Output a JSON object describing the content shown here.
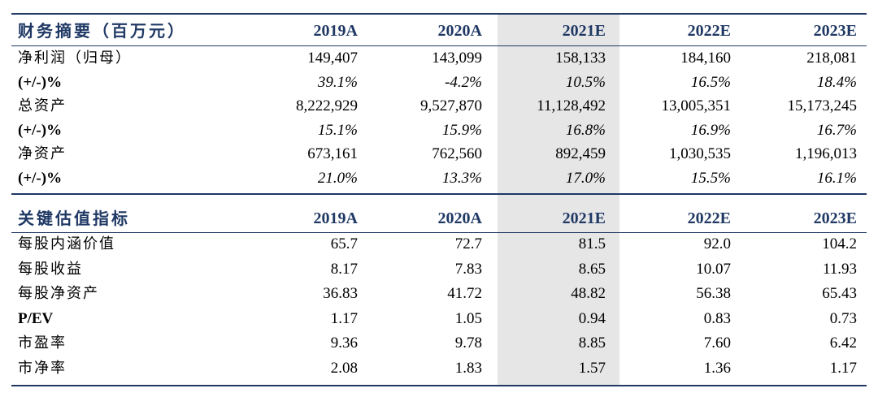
{
  "section1": {
    "header": {
      "label": "财务摘要（百万元）",
      "years": [
        "2019A",
        "2020A",
        "2021E",
        "2022E",
        "2023E"
      ]
    },
    "rows": [
      {
        "label": "净利润（归母）",
        "values": [
          "149,407",
          "143,099",
          "158,133",
          "184,160",
          "218,081"
        ],
        "italic": false
      },
      {
        "label": "(+/-)%",
        "values": [
          "39.1%",
          "-4.2%",
          "10.5%",
          "16.5%",
          "18.4%"
        ],
        "italic": true
      },
      {
        "label": "总资产",
        "values": [
          "8,222,929",
          "9,527,870",
          "11,128,492",
          "13,005,351",
          "15,173,245"
        ],
        "italic": false
      },
      {
        "label": "(+/-)%",
        "values": [
          "15.1%",
          "15.9%",
          "16.8%",
          "16.9%",
          "16.7%"
        ],
        "italic": true
      },
      {
        "label": "净资产",
        "values": [
          "673,161",
          "762,560",
          "892,459",
          "1,030,535",
          "1,196,013"
        ],
        "italic": false
      },
      {
        "label": "(+/-)%",
        "values": [
          "21.0%",
          "13.3%",
          "17.0%",
          "15.5%",
          "16.1%"
        ],
        "italic": true
      }
    ]
  },
  "section2": {
    "header": {
      "label": "关键估值指标",
      "years": [
        "2019A",
        "2020A",
        "2021E",
        "2022E",
        "2023E"
      ]
    },
    "rows": [
      {
        "label": "每股内涵价值",
        "values": [
          "65.7",
          "72.7",
          "81.5",
          "92.0",
          "104.2"
        ],
        "italic": false
      },
      {
        "label": "每股收益",
        "values": [
          "8.17",
          "7.83",
          "8.65",
          "10.07",
          "11.93"
        ],
        "italic": false
      },
      {
        "label": "每股净资产",
        "values": [
          "36.83",
          "41.72",
          "48.82",
          "56.38",
          "65.43"
        ],
        "italic": false
      },
      {
        "label": "P/EV",
        "values": [
          "1.17",
          "1.05",
          "0.94",
          "0.83",
          "0.73"
        ],
        "italic": false
      },
      {
        "label": "市盈率",
        "values": [
          "9.36",
          "9.78",
          "8.85",
          "7.60",
          "6.42"
        ],
        "italic": false
      },
      {
        "label": "市净率",
        "values": [
          "2.08",
          "1.83",
          "1.57",
          "1.36",
          "1.17"
        ],
        "italic": false
      }
    ]
  },
  "colors": {
    "header_text": "#1f3864",
    "rule": "#1f3864",
    "highlight_column": "#e6e6e6"
  }
}
